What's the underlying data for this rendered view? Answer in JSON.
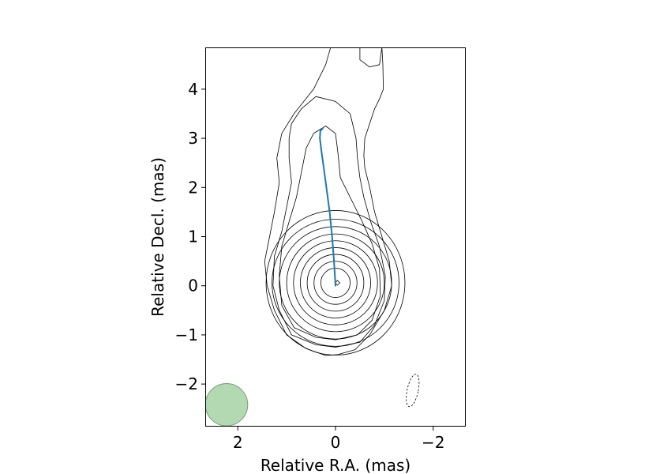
{
  "chart_data": {
    "type": "contour",
    "xlabel": "Relative R.A. (mas)",
    "ylabel": "Relative Decl. (mas)",
    "xlim": [
      2.65,
      -2.65
    ],
    "ylim": [
      -2.85,
      4.85
    ],
    "x_inverted": true,
    "xticks": [
      2,
      0,
      -2
    ],
    "xtick_labels": [
      "2",
      "0",
      "−2"
    ],
    "yticks": [
      -2,
      -1,
      0,
      1,
      2,
      3,
      4
    ],
    "ytick_labels": [
      "−2",
      "−1",
      "0",
      "1",
      "2",
      "3",
      "4"
    ],
    "grid": false,
    "core_contour_radii_mas": [
      1.45,
      1.3,
      1.15,
      1.0,
      0.86,
      0.72,
      0.58,
      0.44,
      0.3
    ],
    "jet_ridge_line": {
      "color": "#1f77b4",
      "x": [
        0.0,
        0.03,
        0.07,
        0.12,
        0.18,
        0.24,
        0.29,
        0.32,
        0.31,
        0.26
      ],
      "y": [
        0.0,
        0.5,
        1.0,
        1.5,
        1.95,
        2.4,
        2.75,
        3.0,
        3.15,
        3.2
      ]
    },
    "core_marker": {
      "x": -0.04,
      "y": 0.06,
      "shape": "diamond"
    },
    "negative_contour": {
      "center_x": -1.58,
      "center_y": -2.13,
      "style": "dashed"
    },
    "beam": {
      "center_x": 2.23,
      "center_y": -2.42,
      "major_mas": 0.85,
      "minor_mas": 0.85,
      "color": "#8fc98f"
    },
    "colors": {
      "contour": "#000000",
      "ridge": "#1f77b4",
      "beam_fill": "#b3d9b3",
      "beam_edge": "#7a9a7a"
    }
  }
}
